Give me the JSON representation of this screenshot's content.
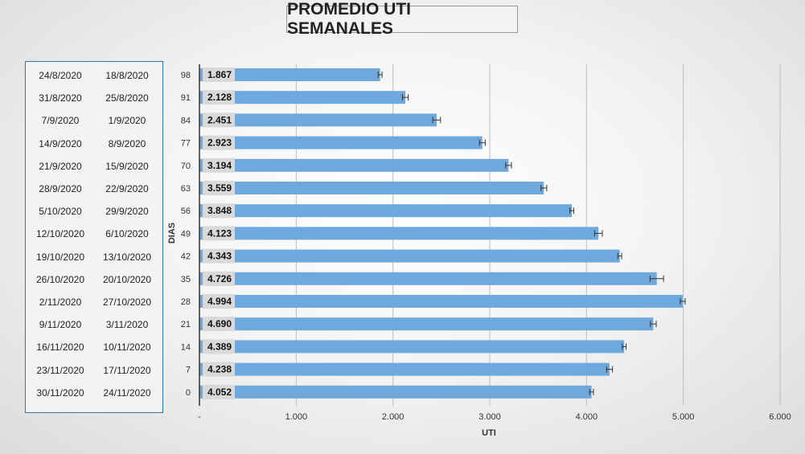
{
  "title": "PROMEDIO UTI SEMANALES",
  "date_rows": [
    {
      "end": "24/8/2020",
      "start": "18/8/2020"
    },
    {
      "end": "31/8/2020",
      "start": "25/8/2020"
    },
    {
      "end": "7/9/2020",
      "start": "1/9/2020"
    },
    {
      "end": "14/9/2020",
      "start": "8/9/2020"
    },
    {
      "end": "21/9/2020",
      "start": "15/9/2020"
    },
    {
      "end": "28/9/2020",
      "start": "22/9/2020"
    },
    {
      "end": "5/10/2020",
      "start": "29/9/2020"
    },
    {
      "end": "12/10/2020",
      "start": "6/10/2020"
    },
    {
      "end": "19/10/2020",
      "start": "13/10/2020"
    },
    {
      "end": "26/10/2020",
      "start": "20/10/2020"
    },
    {
      "end": "2/11/2020",
      "start": "27/10/2020"
    },
    {
      "end": "9/11/2020",
      "start": "3/11/2020"
    },
    {
      "end": "16/11/2020",
      "start": "10/11/2020"
    },
    {
      "end": "23/11/2020",
      "start": "17/11/2020"
    },
    {
      "end": "30/11/2020",
      "start": "24/11/2020"
    }
  ],
  "chart_data": {
    "type": "bar",
    "orientation": "horizontal",
    "title": "PROMEDIO UTI SEMANALES",
    "xlabel": "UTI",
    "ylabel": "DIAS",
    "categories": [
      "98",
      "91",
      "84",
      "77",
      "70",
      "63",
      "56",
      "49",
      "42",
      "35",
      "28",
      "21",
      "14",
      "7",
      "0"
    ],
    "values": [
      1867,
      2128,
      2451,
      2923,
      3194,
      3559,
      3848,
      4123,
      4343,
      4726,
      4994,
      4690,
      4389,
      4238,
      4052
    ],
    "data_labels": [
      "1.867",
      "2.128",
      "2.451",
      "2.923",
      "3.194",
      "3.559",
      "3.848",
      "4.123",
      "4.343",
      "4.726",
      "4.994",
      "4.690",
      "4.389",
      "4.238",
      "4.052"
    ],
    "error_bars": [
      20,
      30,
      40,
      30,
      30,
      30,
      20,
      40,
      20,
      70,
      25,
      30,
      20,
      30,
      20
    ],
    "xlim": [
      0,
      6000
    ],
    "xticks": [
      0,
      1000,
      2000,
      3000,
      4000,
      5000,
      6000
    ],
    "xtick_labels": [
      "-",
      "1.000",
      "2.000",
      "3.000",
      "4.000",
      "5.000",
      "6.000"
    ],
    "grid": "vertical",
    "colors": {
      "bar": "#6fa8dc",
      "label_bg": "#d9d9d9",
      "grid": "#bdbdbd",
      "axis": "#333333"
    }
  }
}
